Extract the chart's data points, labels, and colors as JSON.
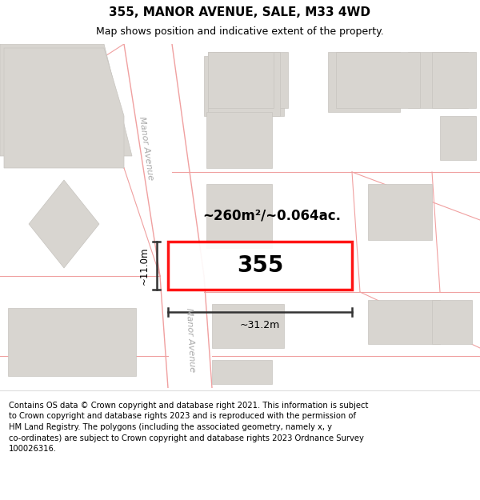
{
  "title": "355, MANOR AVENUE, SALE, M33 4WD",
  "subtitle": "Map shows position and indicative extent of the property.",
  "footer": "Contains OS data © Crown copyright and database right 2021. This information is subject\nto Crown copyright and database rights 2023 and is reproduced with the permission of\nHM Land Registry. The polygons (including the associated geometry, namely x, y\nco-ordinates) are subject to Crown copyright and database rights 2023 Ordnance Survey\n100026316.",
  "map_bg": "#f7f5f2",
  "road_fill": "#ffffff",
  "road_line": "#f0a0a0",
  "bld_fill": "#d8d5d0",
  "bld_edge": "#c8c5c0",
  "red": "#ff0000",
  "dim_label": "~260m²/~0.064ac.",
  "width_label": "~31.2m",
  "height_label": "~11.0m",
  "number_label": "355",
  "road_label": "Manor Avenue",
  "title_color": "#000000",
  "subtitle_color": "#000000",
  "footer_color": "#000000"
}
